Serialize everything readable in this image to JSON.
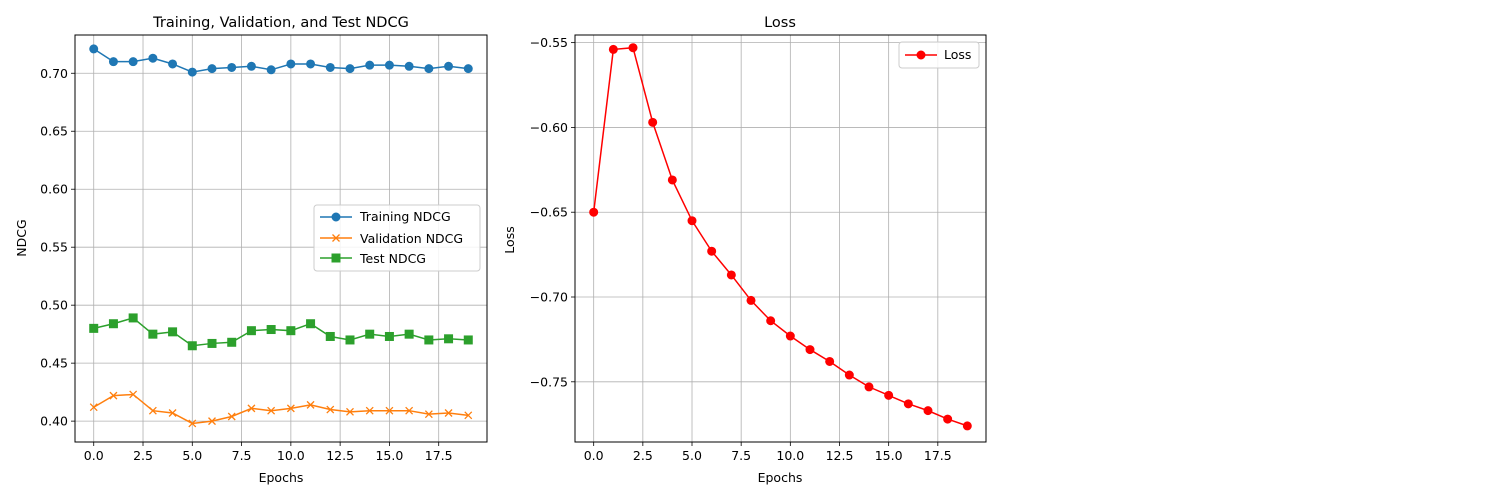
{
  "chart_data": [
    {
      "type": "line",
      "title": "Training, Validation, and Test NDCG",
      "xlabel": "Epochs",
      "ylabel": "NDCG",
      "xlim": [
        -0.95,
        19.95
      ],
      "ylim": [
        0.382,
        0.733
      ],
      "xticks": [
        0,
        2.5,
        5,
        7.5,
        10,
        12.5,
        15,
        17.5
      ],
      "xtick_labels": [
        "0.0",
        "2.5",
        "5.0",
        "7.5",
        "10.0",
        "12.5",
        "15.0",
        "17.5"
      ],
      "yticks": [
        0.4,
        0.45,
        0.5,
        0.55,
        0.6,
        0.65,
        0.7
      ],
      "ytick_labels": [
        "0.40",
        "0.45",
        "0.50",
        "0.55",
        "0.60",
        "0.65",
        "0.70"
      ],
      "grid": true,
      "legend_position": "center-right",
      "x": [
        0,
        1,
        2,
        3,
        4,
        5,
        6,
        7,
        8,
        9,
        10,
        11,
        12,
        13,
        14,
        15,
        16,
        17,
        18,
        19
      ],
      "series": [
        {
          "name": "Training NDCG",
          "color": "#1f77b4",
          "marker": "circle",
          "values": [
            0.721,
            0.71,
            0.71,
            0.713,
            0.708,
            0.701,
            0.704,
            0.705,
            0.706,
            0.703,
            0.708,
            0.708,
            0.705,
            0.704,
            0.707,
            0.707,
            0.706,
            0.704,
            0.706,
            0.704
          ]
        },
        {
          "name": "Validation NDCG",
          "color": "#ff7f0e",
          "marker": "x",
          "values": [
            0.412,
            0.422,
            0.423,
            0.409,
            0.407,
            0.398,
            0.4,
            0.404,
            0.411,
            0.409,
            0.411,
            0.414,
            0.41,
            0.408,
            0.409,
            0.409,
            0.409,
            0.406,
            0.407,
            0.405
          ]
        },
        {
          "name": "Test NDCG",
          "color": "#2ca02c",
          "marker": "square",
          "values": [
            0.48,
            0.484,
            0.489,
            0.475,
            0.477,
            0.465,
            0.467,
            0.468,
            0.478,
            0.479,
            0.478,
            0.484,
            0.473,
            0.47,
            0.475,
            0.473,
            0.475,
            0.47,
            0.471,
            0.47
          ]
        }
      ]
    },
    {
      "type": "line",
      "title": "Loss",
      "xlabel": "Epochs",
      "ylabel": "Loss",
      "xlim": [
        -0.95,
        19.95
      ],
      "ylim": [
        -0.7855,
        -0.5455
      ],
      "xticks": [
        0,
        2.5,
        5,
        7.5,
        10,
        12.5,
        15,
        17.5
      ],
      "xtick_labels": [
        "0.0",
        "2.5",
        "5.0",
        "7.5",
        "10.0",
        "12.5",
        "15.0",
        "17.5"
      ],
      "yticks": [
        -0.75,
        -0.7,
        -0.65,
        -0.6,
        -0.55
      ],
      "ytick_labels": [
        "−0.75",
        "−0.70",
        "−0.65",
        "−0.60",
        "−0.55"
      ],
      "grid": true,
      "legend_position": "top-right",
      "x": [
        0,
        1,
        2,
        3,
        4,
        5,
        6,
        7,
        8,
        9,
        10,
        11,
        12,
        13,
        14,
        15,
        16,
        17,
        18,
        19
      ],
      "series": [
        {
          "name": "Loss",
          "color": "#ff0000",
          "marker": "circle",
          "values": [
            -0.65,
            -0.554,
            -0.553,
            -0.597,
            -0.631,
            -0.655,
            -0.673,
            -0.687,
            -0.702,
            -0.714,
            -0.723,
            -0.731,
            -0.738,
            -0.746,
            -0.753,
            -0.758,
            -0.763,
            -0.767,
            -0.772,
            -0.776
          ]
        }
      ]
    }
  ]
}
